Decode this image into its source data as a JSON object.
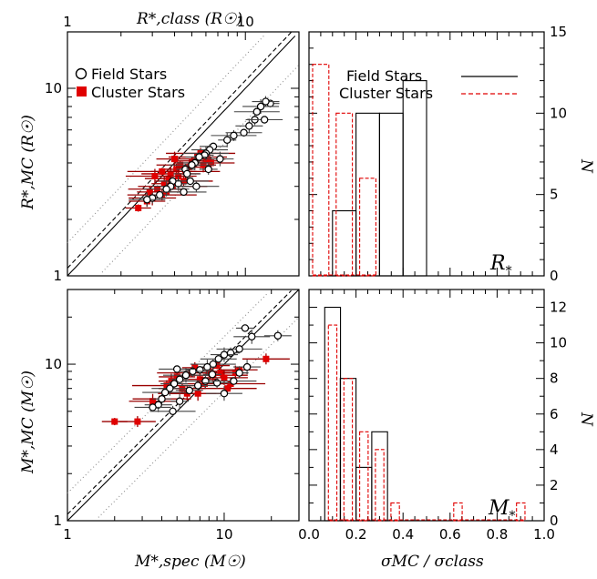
{
  "colors": {
    "field": "#000000",
    "cluster": "#e00000",
    "cluster_dark": "#9a0000",
    "dotted": "#888888"
  },
  "chart_data": [
    {
      "type": "scatter",
      "panel": "R-comparison",
      "xscale": "log",
      "yscale": "log",
      "xlim": [
        1,
        20
      ],
      "ylim": [
        1,
        20
      ],
      "xlabel_top": "R*,class (R☉)",
      "ylabel": "R*,MC (R☉)",
      "x_ticks_top": [
        "1",
        "10"
      ],
      "y_ticks": [
        "1",
        "10"
      ],
      "legend": [
        "Field Stars",
        "Cluster Stars"
      ],
      "legend_position": "top-left",
      "lines": [
        "one-to-one (solid)",
        "fit (dashed)",
        "±σ (dotted)"
      ],
      "series": [
        {
          "name": "Field Stars",
          "marker": "open-circle",
          "points": [
            [
              13.8,
              8.3
            ],
            [
              13.0,
              8.5
            ],
            [
              12.2,
              8.0
            ],
            [
              11.6,
              7.5
            ],
            [
              11.3,
              6.8
            ],
            [
              10.5,
              6.3
            ],
            [
              9.8,
              5.8
            ],
            [
              8.6,
              5.6
            ],
            [
              7.9,
              5.3
            ],
            [
              6.6,
              4.9
            ],
            [
              6.3,
              4.7
            ],
            [
              6.0,
              4.5
            ],
            [
              5.9,
              4.4
            ],
            [
              5.5,
              4.3
            ],
            [
              5.2,
              4.0
            ],
            [
              5.0,
              3.9
            ],
            [
              4.6,
              3.7
            ],
            [
              4.7,
              3.5
            ],
            [
              4.9,
              3.2
            ],
            [
              5.3,
              3.0
            ],
            [
              4.2,
              3.1
            ],
            [
              3.9,
              3.2
            ],
            [
              3.8,
              3.0
            ],
            [
              3.6,
              2.9
            ],
            [
              3.3,
              2.7
            ],
            [
              3.0,
              2.6
            ],
            [
              2.8,
              2.55
            ],
            [
              4.5,
              2.8
            ],
            [
              6.2,
              3.7
            ],
            [
              7.2,
              4.2
            ],
            [
              12.8,
              6.8
            ]
          ]
        },
        {
          "name": "Cluster Stars",
          "marker": "filled-square",
          "points": [
            [
              2.5,
              2.3
            ],
            [
              2.8,
              2.5
            ],
            [
              3.0,
              2.6
            ],
            [
              3.2,
              2.9
            ],
            [
              3.4,
              2.7
            ],
            [
              3.5,
              3.1
            ],
            [
              3.6,
              2.8
            ],
            [
              3.7,
              3.3
            ],
            [
              3.8,
              3.5
            ],
            [
              3.9,
              3.0
            ],
            [
              4.1,
              3.7
            ],
            [
              4.2,
              3.4
            ],
            [
              4.3,
              3.9
            ],
            [
              4.5,
              3.2
            ],
            [
              4.6,
              3.6
            ],
            [
              4.8,
              3.8
            ],
            [
              5.0,
              4.0
            ],
            [
              5.2,
              4.1
            ],
            [
              5.4,
              4.3
            ],
            [
              5.6,
              4.5
            ],
            [
              5.8,
              3.9
            ],
            [
              6.1,
              4.2
            ],
            [
              6.4,
              4.0
            ],
            [
              3.1,
              3.4
            ],
            [
              3.4,
              3.6
            ],
            [
              2.9,
              2.8
            ],
            [
              4.0,
              4.2
            ]
          ]
        }
      ]
    },
    {
      "type": "bar",
      "panel": "R-histogram",
      "xlim": [
        0.0,
        1.0
      ],
      "ylim": [
        0,
        15
      ],
      "ylabel": "N",
      "y_ticks": [
        "0",
        "5",
        "10",
        "15"
      ],
      "annotation": "R*",
      "legend": [
        "Field Stars",
        "Cluster Stars"
      ],
      "legend_position": "top-right",
      "series": [
        {
          "name": "Field Stars",
          "style": "solid",
          "bin_width": 0.1,
          "bins": [
            0.1,
            0.2,
            0.3,
            0.4
          ],
          "values": [
            4,
            10,
            10,
            12
          ]
        },
        {
          "name": "Cluster Stars",
          "style": "dashed",
          "bin_width": 0.1,
          "bins": [
            0.0,
            0.1,
            0.2
          ],
          "values": [
            13,
            10,
            6
          ]
        }
      ]
    },
    {
      "type": "scatter",
      "panel": "M-comparison",
      "xscale": "log",
      "yscale": "log",
      "xlim": [
        1,
        30
      ],
      "ylim": [
        1,
        30
      ],
      "xlabel": "M*,spec (M☉)",
      "ylabel": "M*,MC (M☉)",
      "x_ticks": [
        "1",
        "10"
      ],
      "y_ticks": [
        "1",
        "10"
      ],
      "series": [
        {
          "name": "Field Stars",
          "marker": "open-circle",
          "points": [
            [
              13.6,
              17.0
            ],
            [
              22.0,
              15.2
            ],
            [
              15.0,
              15.0
            ],
            [
              12.5,
              12.5
            ],
            [
              11.0,
              11.8
            ],
            [
              10.0,
              11.5
            ],
            [
              9.2,
              10.8
            ],
            [
              8.5,
              10.0
            ],
            [
              7.8,
              9.6
            ],
            [
              7.0,
              9.2
            ],
            [
              6.3,
              9.0
            ],
            [
              5.7,
              8.5
            ],
            [
              5.2,
              8.0
            ],
            [
              4.8,
              7.5
            ],
            [
              4.5,
              7.0
            ],
            [
              4.2,
              6.6
            ],
            [
              4.0,
              6.0
            ],
            [
              3.8,
              5.5
            ],
            [
              3.5,
              5.3
            ],
            [
              4.7,
              5.0
            ],
            [
              5.2,
              5.8
            ],
            [
              6.0,
              6.8
            ],
            [
              6.8,
              7.3
            ],
            [
              7.6,
              7.8
            ],
            [
              8.4,
              8.6
            ],
            [
              9.0,
              7.6
            ],
            [
              10.0,
              6.5
            ],
            [
              11.5,
              7.8
            ],
            [
              12.5,
              8.8
            ],
            [
              14.0,
              9.6
            ],
            [
              5.0,
              9.3
            ]
          ]
        },
        {
          "name": "Cluster Stars",
          "marker": "filled-square",
          "points": [
            [
              2.0,
              4.3
            ],
            [
              2.8,
              4.3
            ],
            [
              3.5,
              5.8
            ],
            [
              4.0,
              6.0
            ],
            [
              4.3,
              7.3
            ],
            [
              4.6,
              7.8
            ],
            [
              5.0,
              8.3
            ],
            [
              5.4,
              7.0
            ],
            [
              5.8,
              6.5
            ],
            [
              6.2,
              8.8
            ],
            [
              6.5,
              9.5
            ],
            [
              7.0,
              8.0
            ],
            [
              7.5,
              7.5
            ],
            [
              8.0,
              9.0
            ],
            [
              8.5,
              8.5
            ],
            [
              9.0,
              9.8
            ],
            [
              9.5,
              8.8
            ],
            [
              10.0,
              8.2
            ],
            [
              10.5,
              7.0
            ],
            [
              11.0,
              7.5
            ],
            [
              11.8,
              8.8
            ],
            [
              12.5,
              9.2
            ],
            [
              18.5,
              10.8
            ],
            [
              6.8,
              6.5
            ]
          ]
        }
      ]
    },
    {
      "type": "bar",
      "panel": "M-histogram",
      "xlim": [
        0.0,
        1.0
      ],
      "ylim": [
        0,
        13
      ],
      "xlabel": "σMC / σclass",
      "ylabel": "N",
      "x_ticks": [
        "0.0",
        "0.2",
        "0.4",
        "0.6",
        "0.8",
        "1.0"
      ],
      "y_ticks": [
        "0",
        "2",
        "4",
        "6",
        "8",
        "10",
        "12"
      ],
      "annotation": "M*",
      "series": [
        {
          "name": "Field Stars",
          "style": "solid",
          "bin_width": 0.067,
          "bins": [
            0.067,
            0.133,
            0.2,
            0.267
          ],
          "values": [
            12,
            8,
            3,
            5
          ]
        },
        {
          "name": "Cluster Stars",
          "style": "dashed",
          "bin_width": 0.067,
          "bins": [
            0.067,
            0.133,
            0.2,
            0.267,
            0.333,
            0.4,
            0.467,
            0.533,
            0.6,
            0.667,
            0.733,
            0.8,
            0.867
          ],
          "values": [
            11,
            8,
            5,
            4,
            1,
            0,
            0,
            0,
            1,
            0,
            0,
            0,
            1
          ]
        }
      ]
    }
  ],
  "labels": {
    "legend_field": "Field Stars",
    "legend_cluster": "Cluster Stars",
    "r_annot_main": "R",
    "r_annot_sub": "*",
    "m_annot_main": "M",
    "m_annot_sub": "*"
  }
}
